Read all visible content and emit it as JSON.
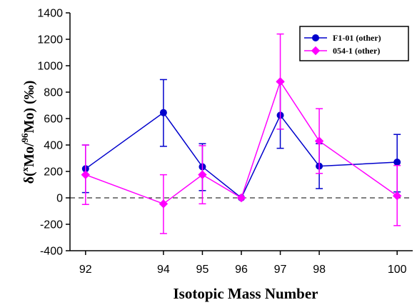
{
  "chart_data": {
    "type": "line",
    "xlabel": "Isotopic Mass Number",
    "ylabel": {
      "prefix": "δ(",
      "sup1": "x",
      "mid": "Mo/",
      "sup2": "96",
      "suffix": "Mo) (‰)"
    },
    "x_ticks": [
      "92",
      "94",
      "95",
      "96",
      "97",
      "98",
      "100"
    ],
    "y_ticks": [
      "1400",
      "1200",
      "1000",
      "800",
      "600",
      "400",
      "200",
      "0",
      "-200",
      "-400"
    ],
    "xlim": [
      91.6,
      100.4
    ],
    "ylim": [
      -400,
      1400
    ],
    "reference_line": 0,
    "legend_position": "top-right",
    "series": [
      {
        "name": "F1-01 (other)",
        "color": "#0000cc",
        "marker": "circle",
        "x": [
          92,
          94,
          95,
          96,
          97,
          98,
          100
        ],
        "y": [
          220,
          645,
          235,
          0,
          625,
          240,
          270
        ],
        "err_low": [
          40,
          390,
          55,
          0,
          375,
          70,
          45
        ],
        "err_high": [
          400,
          895,
          410,
          0,
          875,
          410,
          480
        ]
      },
      {
        "name": "054-1 (other)",
        "color": "#ff00ff",
        "marker": "diamond",
        "x": [
          92,
          94,
          95,
          96,
          97,
          98,
          100
        ],
        "y": [
          175,
          -45,
          175,
          0,
          880,
          430,
          15
        ],
        "err_low": [
          -50,
          -270,
          -45,
          0,
          520,
          185,
          -210
        ],
        "err_high": [
          400,
          175,
          395,
          0,
          1240,
          675,
          245
        ]
      }
    ]
  }
}
